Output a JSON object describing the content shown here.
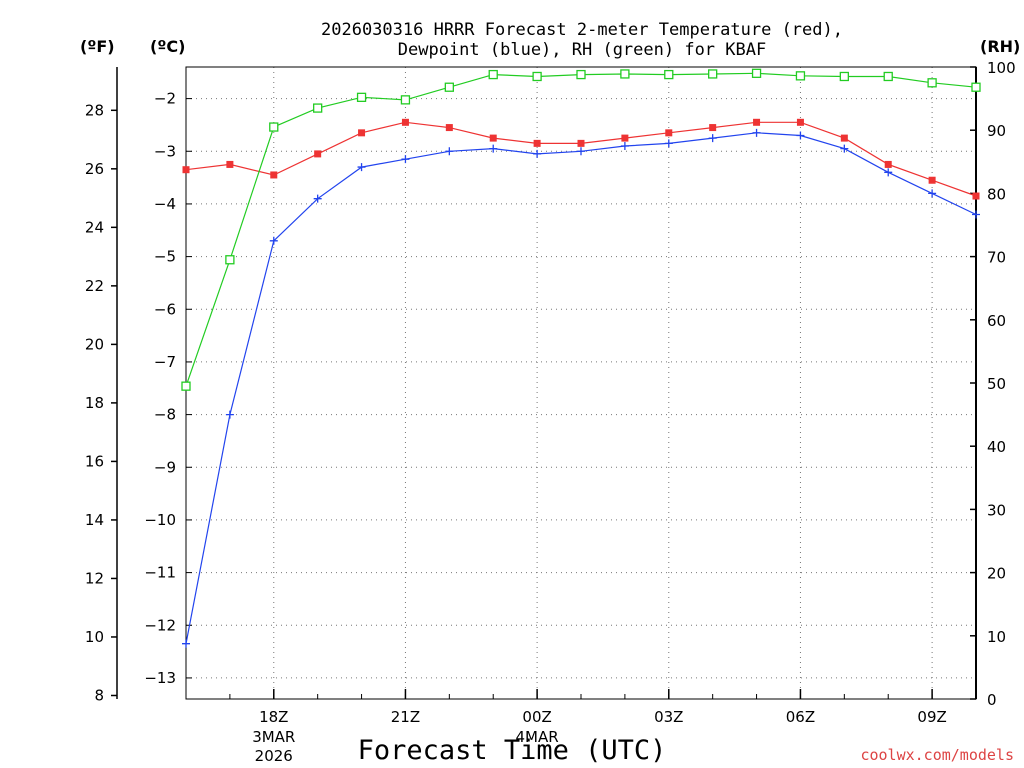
{
  "chart_data": {
    "type": "line",
    "title_line1": "2026030316 HRRR Forecast 2-meter Temperature (red),",
    "title_line2": "Dewpoint (blue), RH (green) for KBAF",
    "xlabel": "Forecast Time (UTC)",
    "unit_labels": {
      "f": "(ºF)",
      "c": "(ºC)",
      "rh": "(RH)"
    },
    "hours": [
      16,
      17,
      18,
      19,
      20,
      21,
      22,
      23,
      24,
      25,
      26,
      27,
      28,
      29,
      30,
      31,
      32,
      33,
      34
    ],
    "x_range": [
      16,
      34
    ],
    "x_ticks": [
      {
        "h": 18,
        "label": "18Z",
        "sub1": "3MAR",
        "sub2": "2026"
      },
      {
        "h": 21,
        "label": "21Z",
        "sub1": "",
        "sub2": ""
      },
      {
        "h": 24,
        "label": "00Z",
        "sub1": "4MAR",
        "sub2": ""
      },
      {
        "h": 27,
        "label": "03Z",
        "sub1": "",
        "sub2": ""
      },
      {
        "h": 30,
        "label": "06Z",
        "sub1": "",
        "sub2": ""
      },
      {
        "h": 33,
        "label": "09Z",
        "sub1": "",
        "sub2": ""
      }
    ],
    "c_range": [
      -13.4,
      -1.4
    ],
    "c_ticks": [
      {
        "v": -2,
        "label": "−2"
      },
      {
        "v": -3,
        "label": "−3"
      },
      {
        "v": -4,
        "label": "−4"
      },
      {
        "v": -5,
        "label": "−5"
      },
      {
        "v": -6,
        "label": "−6"
      },
      {
        "v": -7,
        "label": "−7"
      },
      {
        "v": -8,
        "label": "−8"
      },
      {
        "v": -9,
        "label": "−9"
      },
      {
        "v": -10,
        "label": "−10"
      },
      {
        "v": -11,
        "label": "−11"
      },
      {
        "v": -12,
        "label": "−12"
      },
      {
        "v": -13,
        "label": "−13"
      }
    ],
    "f_ticks": [
      {
        "v": 8,
        "label": "8"
      },
      {
        "v": 10,
        "label": "10"
      },
      {
        "v": 12,
        "label": "12"
      },
      {
        "v": 14,
        "label": "14"
      },
      {
        "v": 16,
        "label": "16"
      },
      {
        "v": 18,
        "label": "18"
      },
      {
        "v": 20,
        "label": "20"
      },
      {
        "v": 22,
        "label": "22"
      },
      {
        "v": 24,
        "label": "24"
      },
      {
        "v": 26,
        "label": "26"
      },
      {
        "v": 28,
        "label": "28"
      }
    ],
    "rh_range": [
      0,
      100
    ],
    "rh_ticks": [
      {
        "v": 0,
        "label": "0"
      },
      {
        "v": 10,
        "label": "10"
      },
      {
        "v": 20,
        "label": "20"
      },
      {
        "v": 30,
        "label": "30"
      },
      {
        "v": 40,
        "label": "40"
      },
      {
        "v": 50,
        "label": "50"
      },
      {
        "v": 60,
        "label": "60"
      },
      {
        "v": 70,
        "label": "70"
      },
      {
        "v": 80,
        "label": "80"
      },
      {
        "v": 90,
        "label": "90"
      },
      {
        "v": 100,
        "label": "100"
      }
    ],
    "series": [
      {
        "name": "Temperature",
        "axis": "c",
        "color": "#ee3333",
        "marker": "filled-square",
        "values": [
          -3.35,
          -3.25,
          -3.45,
          -3.05,
          -2.65,
          -2.45,
          -2.55,
          -2.75,
          -2.85,
          -2.85,
          -2.75,
          -2.65,
          -2.55,
          -2.45,
          -2.45,
          -2.75,
          -3.25,
          -3.55,
          -3.85
        ]
      },
      {
        "name": "Dewpoint",
        "axis": "c",
        "color": "#2244ee",
        "marker": "plus",
        "values": [
          -12.35,
          -8.0,
          -4.7,
          -3.9,
          -3.3,
          -3.15,
          -3.0,
          -2.95,
          -3.05,
          -3.0,
          -2.9,
          -2.85,
          -2.75,
          -2.65,
          -2.7,
          -2.95,
          -3.4,
          -3.8,
          -4.2
        ]
      },
      {
        "name": "RH",
        "axis": "rh",
        "color": "#22cc22",
        "marker": "open-square",
        "values": [
          49.5,
          69.5,
          90.5,
          93.5,
          95.2,
          94.8,
          96.8,
          98.8,
          98.5,
          98.8,
          98.9,
          98.8,
          98.9,
          99.0,
          98.6,
          98.5,
          98.5,
          97.5,
          96.8
        ]
      }
    ]
  },
  "credit": {
    "text": "coolwx.com/models",
    "color": "#dd4444"
  }
}
